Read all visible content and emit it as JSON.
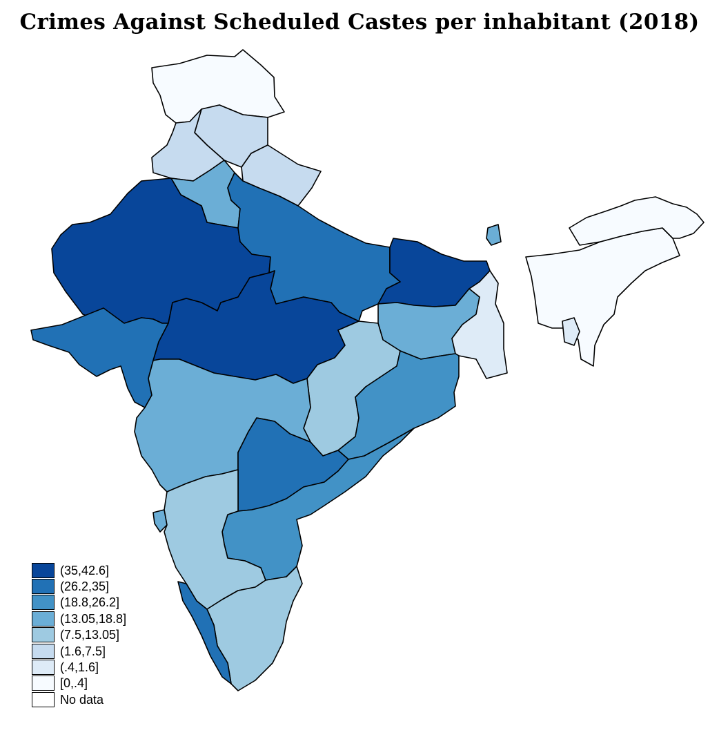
{
  "title": "Crimes Against Scheduled Castes per inhabitant (2018)",
  "legend": [
    {
      "label": "(35,42.6]",
      "color": "#08469a"
    },
    {
      "label": "(26.2,35]",
      "color": "#2171b5"
    },
    {
      "label": "(18.8,26.2]",
      "color": "#4292c6"
    },
    {
      "label": "(13.05,18.8]",
      "color": "#6baed6"
    },
    {
      "label": "(7.5,13.05]",
      "color": "#9ecae1"
    },
    {
      "label": "(1.6,7.5]",
      "color": "#c6dbef"
    },
    {
      "label": "(.4,1.6]",
      "color": "#deebf7"
    },
    {
      "label": "[0,.4]",
      "color": "#f7fbff"
    },
    {
      "label": "No data",
      "color": "#ffffff"
    }
  ],
  "regions": [
    {
      "name": "Jammu and Kashmir",
      "class": "[0,.4]"
    },
    {
      "name": "Himachal Pradesh",
      "class": "(1.6,7.5]"
    },
    {
      "name": "Punjab",
      "class": "(1.6,7.5]"
    },
    {
      "name": "Uttarakhand",
      "class": "(1.6,7.5]"
    },
    {
      "name": "Haryana",
      "class": "(13.05,18.8]"
    },
    {
      "name": "Rajasthan",
      "class": "(35,42.6]"
    },
    {
      "name": "Uttar Pradesh",
      "class": "(26.2,35]"
    },
    {
      "name": "Bihar",
      "class": "(35,42.6]"
    },
    {
      "name": "Gujarat",
      "class": "(26.2,35]"
    },
    {
      "name": "Madhya Pradesh",
      "class": "(35,42.6]"
    },
    {
      "name": "Jharkhand",
      "class": "(13.05,18.8]"
    },
    {
      "name": "West Bengal",
      "class": "(.4,1.6]"
    },
    {
      "name": "Chhattisgarh",
      "class": "(7.5,13.05]"
    },
    {
      "name": "Odisha",
      "class": "(18.8,26.2]"
    },
    {
      "name": "Maharashtra",
      "class": "(13.05,18.8]"
    },
    {
      "name": "Telangana",
      "class": "(26.2,35]"
    },
    {
      "name": "Andhra Pradesh",
      "class": "(18.8,26.2]"
    },
    {
      "name": "Karnataka",
      "class": "(7.5,13.05]"
    },
    {
      "name": "Tamil Nadu",
      "class": "(7.5,13.05]"
    },
    {
      "name": "Kerala",
      "class": "(26.2,35]"
    },
    {
      "name": "Goa",
      "class": "(13.05,18.8]"
    },
    {
      "name": "Sikkim",
      "class": "(13.05,18.8]"
    },
    {
      "name": "Northeast",
      "class": "[0,.4]"
    },
    {
      "name": "Tripura",
      "class": "(.4,1.6]"
    }
  ]
}
